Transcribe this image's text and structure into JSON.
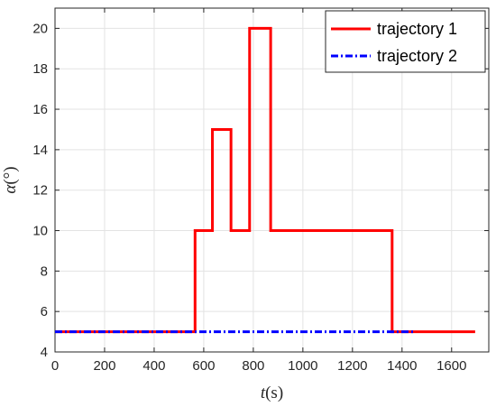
{
  "chart_data": {
    "type": "line",
    "title": "",
    "xlabel": {
      "symbol": "t",
      "unit": "(s)"
    },
    "ylabel": {
      "symbol": "α",
      "unit": "(°)"
    },
    "xlim": [
      0,
      1750
    ],
    "ylim": [
      4,
      21
    ],
    "xticks": [
      0,
      200,
      400,
      600,
      800,
      1000,
      1200,
      1400,
      1600
    ],
    "yticks": [
      4,
      6,
      8,
      10,
      12,
      14,
      16,
      18,
      20
    ],
    "grid": true,
    "legend_position": "top-right",
    "series": [
      {
        "name": "trajectory 1",
        "color": "#ff0000",
        "style": "solid",
        "x": [
          0,
          565,
          565,
          635,
          635,
          710,
          710,
          785,
          785,
          870,
          870,
          1360,
          1360,
          1695
        ],
        "y": [
          5,
          5,
          10,
          10,
          15,
          15,
          10,
          10,
          20,
          20,
          10,
          10,
          5,
          5
        ]
      },
      {
        "name": "trajectory 2",
        "color": "#0000ff",
        "style": "dashdot",
        "x": [
          0,
          1450
        ],
        "y": [
          5,
          5
        ]
      }
    ]
  }
}
